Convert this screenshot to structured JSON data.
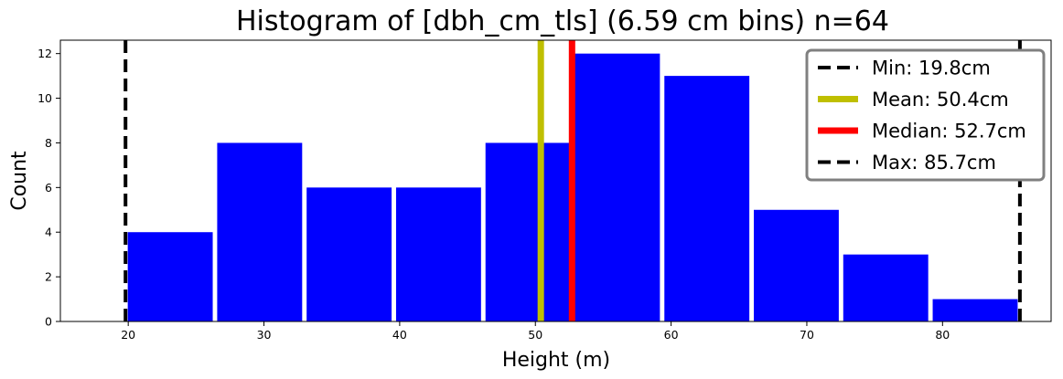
{
  "chart_data": {
    "type": "bar",
    "title": "Histogram of [dbh_cm_tls] (6.59 cm bins) n=64",
    "xlabel": "Height (m)",
    "ylabel": "Count",
    "xlim": [
      15,
      88
    ],
    "ylim": [
      0,
      12.6
    ],
    "xticks": [
      "20",
      "30",
      "40",
      "50",
      "60",
      "70",
      "80"
    ],
    "yticks": [
      "0",
      "2",
      "4",
      "6",
      "8",
      "10",
      "12"
    ],
    "bin_width": 6.59,
    "bins": [
      {
        "start": 19.8,
        "count": 4
      },
      {
        "start": 26.39,
        "count": 8
      },
      {
        "start": 32.98,
        "count": 6
      },
      {
        "start": 39.57,
        "count": 6
      },
      {
        "start": 46.16,
        "count": 8
      },
      {
        "start": 52.75,
        "count": 12
      },
      {
        "start": 59.34,
        "count": 11
      },
      {
        "start": 65.93,
        "count": 5
      },
      {
        "start": 72.52,
        "count": 3
      },
      {
        "start": 79.11,
        "count": 1
      }
    ],
    "bar_color": "#0000ff",
    "reference_lines": [
      {
        "label": "Min: 19.8cm",
        "value": 19.8,
        "color": "#000000",
        "style": "dashed"
      },
      {
        "label": "Mean: 50.4cm",
        "value": 50.4,
        "color": "#bfbf00",
        "style": "solid"
      },
      {
        "label": "Median: 52.7cm",
        "value": 52.7,
        "color": "#ff0000",
        "style": "solid"
      },
      {
        "label": "Max: 85.7cm",
        "value": 85.7,
        "color": "#000000",
        "style": "dashed"
      }
    ],
    "legend_position": "top-right",
    "grid": false
  }
}
